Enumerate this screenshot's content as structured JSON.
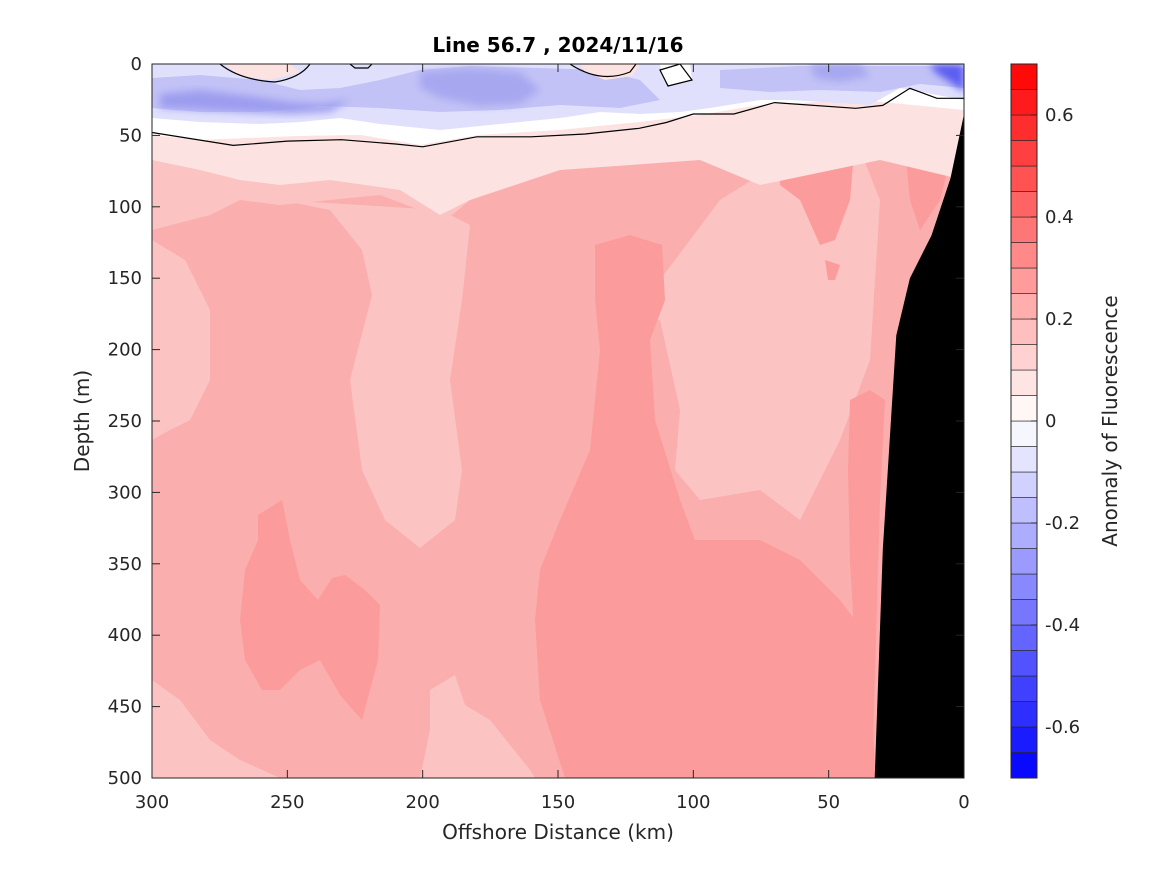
{
  "chart_data": {
    "type": "heatmap",
    "title": "Line 56.7 , 2024/11/16",
    "xlabel": "Offshore Distance (km)",
    "ylabel": "Depth (m)",
    "colorbar_label": "Anomaly of Fluorescence",
    "xlim": [
      300,
      0
    ],
    "ylim": [
      500,
      0
    ],
    "x_ticks": [
      "300",
      "250",
      "200",
      "150",
      "100",
      "50",
      "0"
    ],
    "y_ticks": [
      "0",
      "50",
      "100",
      "150",
      "200",
      "250",
      "300",
      "350",
      "400",
      "450",
      "500"
    ],
    "colorbar_range": [
      -0.7,
      0.7
    ],
    "colorbar_step": 0.05,
    "colorbar_ticks": [
      "0.6",
      "0.4",
      "0.2",
      "0",
      "-0.2",
      "-0.4",
      "-0.6"
    ],
    "zero_contour": [
      [
        300,
        48
      ],
      [
        270,
        57
      ],
      [
        250,
        54
      ],
      [
        230,
        53
      ],
      [
        210,
        56
      ],
      [
        200,
        58
      ],
      [
        180,
        51
      ],
      [
        160,
        51
      ],
      [
        140,
        49
      ],
      [
        120,
        45
      ],
      [
        110,
        41
      ],
      [
        100,
        35
      ],
      [
        85,
        35
      ],
      [
        70,
        27
      ],
      [
        40,
        31
      ],
      [
        30,
        29
      ],
      [
        20,
        17
      ],
      [
        10,
        24
      ],
      [
        0,
        24
      ]
    ],
    "blue_patches": [
      {
        "x": 280,
        "depth": 30,
        "value": -0.35
      },
      {
        "x": 180,
        "depth": 20,
        "value": -0.3
      },
      {
        "x": 45,
        "depth": 5,
        "value": -0.25
      },
      {
        "x": 0,
        "depth": 3,
        "value": -0.6
      }
    ],
    "red_regions": [
      {
        "x": 255,
        "depth": 400,
        "value": 0.3
      },
      {
        "x": 125,
        "depth": 200,
        "value": 0.3
      },
      {
        "x": 55,
        "depth": 100,
        "value": 0.3
      }
    ],
    "bathymetry": [
      [
        0,
        35
      ],
      [
        5,
        80
      ],
      [
        12,
        120
      ],
      [
        20,
        150
      ],
      [
        25,
        190
      ],
      [
        30,
        340
      ],
      [
        33,
        500
      ]
    ],
    "colors": {
      "positive_max": "#ff0000",
      "negative_max": "#0000ff",
      "land": "#000000",
      "contour": "#000000"
    }
  }
}
